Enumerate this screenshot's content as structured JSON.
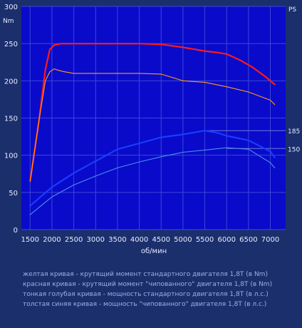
{
  "chart_data": {
    "type": "line",
    "xlabel": "об/мин",
    "y_left_unit": "Nm",
    "y_right_unit": "PS",
    "xlim": [
      1300,
      7350
    ],
    "ylim": [
      0,
      300
    ],
    "x_ticks": [
      1500,
      2000,
      2500,
      3000,
      3500,
      4000,
      4500,
      5000,
      5500,
      6000,
      6500,
      7000
    ],
    "y_ticks": [
      0,
      50,
      100,
      150,
      200,
      250,
      300
    ],
    "grid": true,
    "right_labels": [
      {
        "text": "185",
        "y": 133
      },
      {
        "text": "150",
        "y": 109
      }
    ],
    "series": [
      {
        "color": "#ff1a1a",
        "width": 2.2,
        "x": [
          1500,
          1700,
          1850,
          1950,
          2050,
          2200,
          2500,
          3000,
          3500,
          4000,
          4500,
          5000,
          5500,
          5800,
          6000,
          6300,
          6600,
          6900,
          7100
        ],
        "y": [
          65,
          145,
          215,
          242,
          248,
          250,
          250,
          250,
          250,
          250,
          249,
          245,
          240,
          238,
          236,
          228,
          218,
          205,
          195
        ]
      },
      {
        "color": "#ff9a1a",
        "width": 1.1,
        "x": [
          1500,
          1700,
          1850,
          1950,
          2050,
          2150,
          2300,
          2500,
          3000,
          3500,
          4000,
          4500,
          5000,
          5500,
          6000,
          6500,
          7000,
          7100
        ],
        "y": [
          65,
          145,
          200,
          212,
          216,
          214,
          212,
          210,
          210,
          210,
          210,
          209,
          200,
          198,
          192,
          185,
          174,
          168
        ]
      },
      {
        "color": "#1a3cff",
        "width": 2.2,
        "x": [
          1500,
          2000,
          2500,
          3000,
          3500,
          4000,
          4500,
          5000,
          5500,
          5800,
          6000,
          6500,
          7000,
          7100
        ],
        "y": [
          32,
          57,
          76,
          92,
          108,
          116,
          124,
          128,
          133,
          130,
          126,
          120,
          105,
          97
        ]
      },
      {
        "color": "#4a90e8",
        "width": 1.1,
        "x": [
          1500,
          2000,
          2500,
          3000,
          3500,
          4000,
          4500,
          5000,
          5500,
          6000,
          6500,
          7000,
          7100
        ],
        "y": [
          20,
          44,
          60,
          72,
          83,
          91,
          98,
          104,
          107,
          110,
          108,
          90,
          83
        ]
      }
    ]
  },
  "legend": [
    "желтая кривая - крутящий момент стандартного двигателя 1,8T (в Nm)",
    "красная кривая - крутящий момент \"чипованного\" двигателя 1,8T (в Nm)",
    "тонкая голубая кривая - мощность стандартного двигателя 1,8T (в л.с.)",
    "толстая синяя кривая - мощность \"чипованного\" двигателя 1,8T (в л.с.)"
  ]
}
